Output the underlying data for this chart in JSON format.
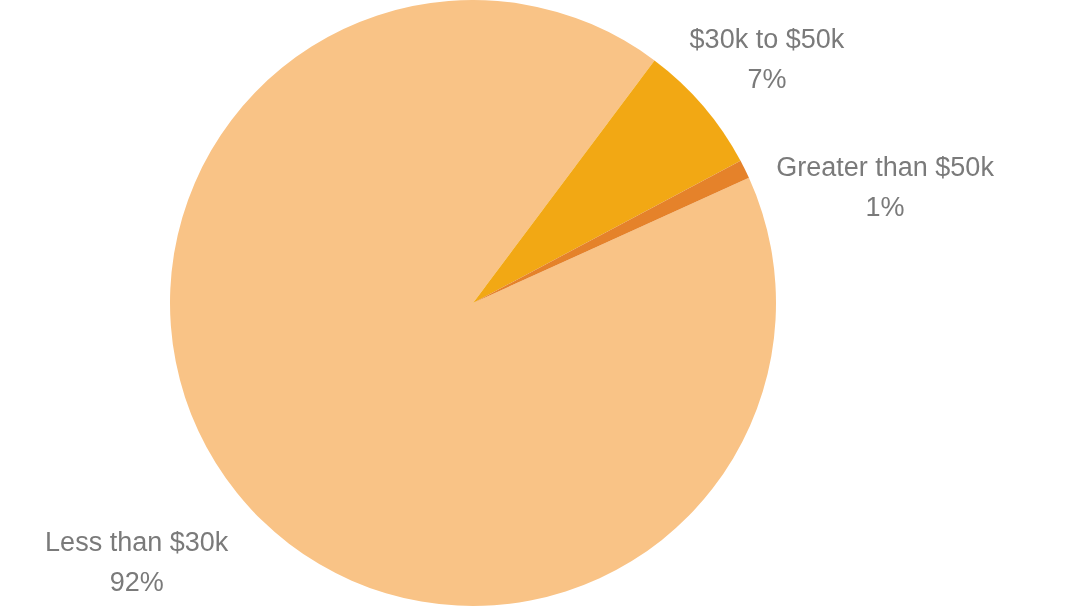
{
  "chart_data": {
    "type": "pie",
    "categories": [
      "Less than $30k",
      "$30k to $50k",
      "Greater than $50k"
    ],
    "values": [
      92,
      7,
      1
    ],
    "colors": [
      "#f9c386",
      "#f2a814",
      "#e5822a"
    ],
    "value_labels": [
      "92%",
      "7%",
      "1%"
    ]
  }
}
